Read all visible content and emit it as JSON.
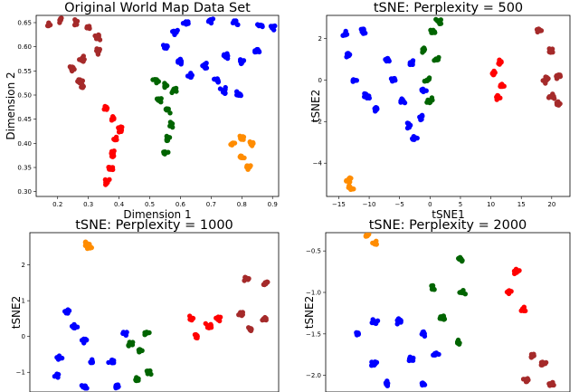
{
  "chart_data": [
    {
      "type": "scatter",
      "title": "Original World Map Data Set",
      "xlabel": "Dimension 1",
      "ylabel": "Dimension 2",
      "xlim": [
        0.13,
        0.92
      ],
      "ylim": [
        0.29,
        0.665
      ],
      "xticks": [
        0.2,
        0.3,
        0.4,
        0.5,
        0.6,
        0.7,
        0.8,
        0.9
      ],
      "yticks": [
        0.3,
        0.35,
        0.4,
        0.45,
        0.5,
        0.55,
        0.6,
        0.65
      ],
      "xtick_labels": [
        "0.2",
        "0.3",
        "0.4",
        "0.5",
        "0.6",
        "0.7",
        "0.8",
        "0.9"
      ],
      "ytick_labels": [
        "0.30",
        "0.35",
        "0.40",
        "0.45",
        "0.50",
        "0.55",
        "0.60",
        "0.65"
      ],
      "grid": false,
      "series": [
        {
          "color": "#a52a2a",
          "points": [
            [
              0.17,
              0.645
            ],
            [
              0.21,
              0.655
            ],
            [
              0.26,
              0.65
            ],
            [
              0.3,
              0.64
            ],
            [
              0.33,
              0.62
            ],
            [
              0.33,
              0.59
            ],
            [
              0.28,
              0.575
            ],
            [
              0.25,
              0.555
            ],
            [
              0.27,
              0.53
            ],
            [
              0.28,
              0.52
            ]
          ]
        },
        {
          "color": "#ff0000",
          "points": [
            [
              0.36,
              0.47
            ],
            [
              0.38,
              0.45
            ],
            [
              0.4,
              0.43
            ],
            [
              0.39,
              0.41
            ],
            [
              0.38,
              0.38
            ],
            [
              0.37,
              0.35
            ],
            [
              0.36,
              0.32
            ]
          ]
        },
        {
          "color": "#006400",
          "points": [
            [
              0.52,
              0.53
            ],
            [
              0.55,
              0.52
            ],
            [
              0.58,
              0.51
            ],
            [
              0.53,
              0.49
            ],
            [
              0.56,
              0.47
            ],
            [
              0.57,
              0.44
            ],
            [
              0.56,
              0.41
            ],
            [
              0.55,
              0.38
            ]
          ]
        },
        {
          "color": "#0000ff",
          "points": [
            [
              0.55,
              0.6
            ],
            [
              0.58,
              0.63
            ],
            [
              0.62,
              0.65
            ],
            [
              0.7,
              0.655
            ],
            [
              0.78,
              0.65
            ],
            [
              0.86,
              0.645
            ],
            [
              0.9,
              0.64
            ],
            [
              0.6,
              0.57
            ],
            [
              0.63,
              0.54
            ],
            [
              0.68,
              0.56
            ],
            [
              0.72,
              0.53
            ],
            [
              0.75,
              0.58
            ],
            [
              0.8,
              0.57
            ],
            [
              0.85,
              0.59
            ],
            [
              0.74,
              0.51
            ],
            [
              0.79,
              0.5
            ]
          ]
        },
        {
          "color": "#ff8c00",
          "points": [
            [
              0.77,
              0.4
            ],
            [
              0.8,
              0.41
            ],
            [
              0.83,
              0.4
            ],
            [
              0.8,
              0.37
            ],
            [
              0.82,
              0.35
            ]
          ]
        }
      ]
    },
    {
      "type": "scatter",
      "title": "tSNE: Perplexity = 500",
      "xlabel": "tSNE1",
      "ylabel": "tSNE2",
      "xlim": [
        -17,
        23
      ],
      "ylim": [
        -5.6,
        3.1
      ],
      "xticks": [
        -15,
        -10,
        -5,
        0,
        5,
        10,
        15,
        20
      ],
      "yticks": [
        -4,
        -2,
        0,
        2
      ],
      "xtick_labels": [
        "−15",
        "−10",
        "−5",
        "0",
        "5",
        "10",
        "15",
        "20"
      ],
      "ytick_labels": [
        "−4",
        "−2",
        "0",
        "2"
      ],
      "grid": false,
      "series": [
        {
          "color": "#0000ff",
          "points": [
            [
              -14,
              2.2
            ],
            [
              -11,
              2.3
            ],
            [
              -13.5,
              1.2
            ],
            [
              -12.5,
              0.0
            ],
            [
              -10.5,
              -0.8
            ],
            [
              -9,
              -1.4
            ],
            [
              -7,
              1.0
            ],
            [
              -6,
              0.0
            ],
            [
              -4.5,
              -1.0
            ],
            [
              -3.5,
              -2.2
            ],
            [
              -2.5,
              -2.8
            ],
            [
              -1.5,
              -1.8
            ],
            [
              -1,
              -0.5
            ],
            [
              -3,
              0.8
            ]
          ]
        },
        {
          "color": "#006400",
          "points": [
            [
              -1,
              1.4
            ],
            [
              0.5,
              2.3
            ],
            [
              1.5,
              2.8
            ],
            [
              -0.5,
              0.0
            ],
            [
              0,
              -1.0
            ],
            [
              1,
              1.0
            ]
          ]
        },
        {
          "color": "#ff0000",
          "points": [
            [
              10.5,
              0.3
            ],
            [
              11.5,
              0.8
            ],
            [
              12,
              -0.3
            ],
            [
              11,
              -0.8
            ]
          ]
        },
        {
          "color": "#a52a2a",
          "points": [
            [
              18,
              2.4
            ],
            [
              20,
              1.4
            ],
            [
              19,
              0.0
            ],
            [
              21,
              0.2
            ],
            [
              20,
              -0.8
            ],
            [
              21,
              -1.1
            ]
          ]
        },
        {
          "color": "#ff8c00",
          "points": [
            [
              -13.3,
              -4.8
            ],
            [
              -13.1,
              -5.2
            ]
          ]
        }
      ]
    },
    {
      "type": "scatter",
      "title": "tSNE: Perplexity = 1000",
      "xlabel": "",
      "ylabel": "tSNE2",
      "xlim": [
        -5,
        5
      ],
      "ylim": [
        -1.55,
        2.9
      ],
      "xticks": [],
      "yticks": [
        -1,
        0,
        1,
        2
      ],
      "xtick_labels": [],
      "ytick_labels": [
        "−1",
        "0",
        "1",
        "2"
      ],
      "grid": false,
      "series": [
        {
          "color": "#0000ff",
          "points": [
            [
              -3.5,
              0.7
            ],
            [
              -3.2,
              0.3
            ],
            [
              -2.8,
              -0.1
            ],
            [
              -2.5,
              -0.7
            ],
            [
              -1.2,
              0.1
            ],
            [
              -1.7,
              -0.7
            ],
            [
              -1.5,
              -1.4
            ],
            [
              -2.8,
              -1.4
            ],
            [
              -3.8,
              -0.6
            ],
            [
              -3.9,
              -1.1
            ]
          ]
        },
        {
          "color": "#006400",
          "points": [
            [
              -1.0,
              -0.2
            ],
            [
              -0.3,
              0.1
            ],
            [
              -0.6,
              -0.4
            ],
            [
              -0.2,
              -1.0
            ],
            [
              -0.7,
              -1.2
            ]
          ]
        },
        {
          "color": "#ff0000",
          "points": [
            [
              1.5,
              0.5
            ],
            [
              2.2,
              0.3
            ],
            [
              2.6,
              0.5
            ],
            [
              1.7,
              0.0
            ]
          ]
        },
        {
          "color": "#a52a2a",
          "points": [
            [
              3.7,
              1.6
            ],
            [
              4.5,
              1.5
            ],
            [
              3.5,
              0.6
            ],
            [
              4.4,
              0.5
            ],
            [
              3.9,
              0.2
            ]
          ]
        },
        {
          "color": "#ff8c00",
          "points": [
            [
              -2.7,
              2.6
            ],
            [
              -2.6,
              2.5
            ]
          ]
        }
      ]
    },
    {
      "type": "scatter",
      "title": "tSNE: Perplexity = 2000",
      "xlabel": "",
      "ylabel": "tSNE2",
      "xlim": [
        -5,
        5
      ],
      "ylim": [
        -2.2,
        -0.28
      ],
      "xticks": [],
      "yticks": [
        -2.0,
        -1.5,
        -1.0,
        -0.5
      ],
      "xtick_labels": [],
      "ytick_labels": [
        "−2.0",
        "−1.5",
        "−1.0",
        "−0.5"
      ],
      "grid": false,
      "series": [
        {
          "color": "#0000ff",
          "points": [
            [
              -3.7,
              -1.5
            ],
            [
              -3.0,
              -1.35
            ],
            [
              -2.0,
              -1.35
            ],
            [
              -1.0,
              -1.5
            ],
            [
              -0.5,
              -1.75
            ],
            [
              -1.5,
              -1.8
            ],
            [
              -3.0,
              -1.85
            ],
            [
              -2.5,
              -2.1
            ],
            [
              -1.0,
              -2.1
            ]
          ]
        },
        {
          "color": "#006400",
          "points": [
            [
              -0.6,
              -0.95
            ],
            [
              0.5,
              -0.6
            ],
            [
              0.6,
              -1.0
            ],
            [
              -0.2,
              -1.3
            ],
            [
              0.4,
              -1.6
            ]
          ]
        },
        {
          "color": "#ff0000",
          "points": [
            [
              2.5,
              -1.0
            ],
            [
              2.8,
              -0.75
            ],
            [
              3.1,
              -1.2
            ]
          ]
        },
        {
          "color": "#a52a2a",
          "points": [
            [
              3.5,
              -1.75
            ],
            [
              3.9,
              -1.85
            ],
            [
              3.2,
              -2.05
            ],
            [
              4.2,
              -2.1
            ]
          ]
        },
        {
          "color": "#ff8c00",
          "points": [
            [
              -3.3,
              -0.3
            ],
            [
              -3.0,
              -0.4
            ]
          ]
        }
      ]
    }
  ]
}
